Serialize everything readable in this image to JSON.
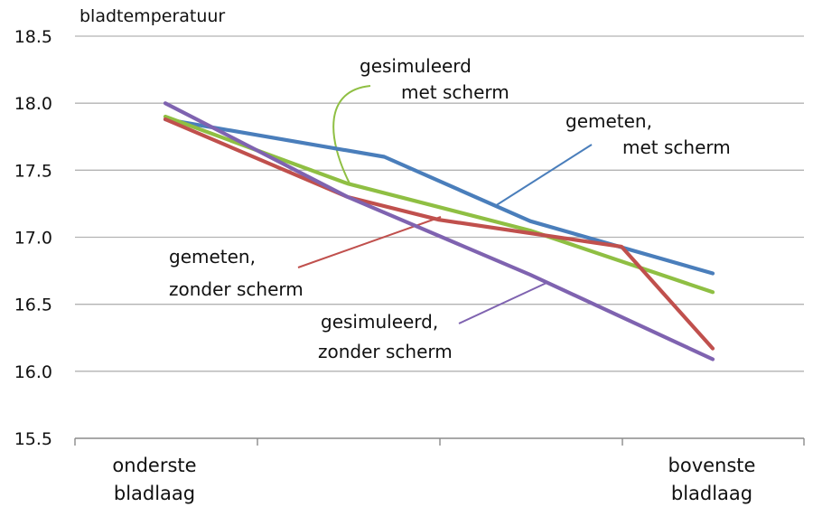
{
  "chart_data": {
    "type": "line",
    "title": "",
    "ylabel": "bladtemperatuur",
    "xlabel": "",
    "ylim": [
      15.5,
      18.5
    ],
    "ytick_step": 0.5,
    "yticks": [
      "15.5",
      "16.0",
      "16.5",
      "17.0",
      "17.5",
      "18.0",
      "18.5"
    ],
    "categories": [
      {
        "line1": "onderste",
        "line2": "bladlaag"
      },
      {
        "line1": "",
        "line2": ""
      },
      {
        "line1": "",
        "line2": ""
      },
      {
        "line1": "bovenste",
        "line2": "bladlaag"
      }
    ],
    "grid": true,
    "legend": "none (inline annotations)",
    "series": [
      {
        "color": "#4a7ebb",
        "label_lines": [
          "gemeten,",
          "met scherm"
        ],
        "x": [
          0,
          1.2,
          2.0,
          3.0
        ],
        "values": [
          17.88,
          17.6,
          17.12,
          16.73
        ]
      },
      {
        "color": "#8fbf43",
        "label_lines": [
          "gesimuleerd",
          "met scherm"
        ],
        "x": [
          0,
          1.0,
          2.0,
          3.0
        ],
        "values": [
          17.9,
          17.4,
          17.05,
          16.59
        ]
      },
      {
        "color": "#c0504d",
        "label_lines": [
          "gemeten,",
          "zonder scherm"
        ],
        "x": [
          0,
          1.0,
          1.5,
          2.5,
          3.0
        ],
        "values": [
          17.88,
          17.3,
          17.13,
          16.93,
          16.17
        ]
      },
      {
        "color": "#7f63b0",
        "label_lines": [
          "gesimuleerd,",
          "zonder scherm"
        ],
        "x": [
          0,
          1.0,
          2.0,
          3.0
        ],
        "values": [
          18.0,
          17.3,
          16.72,
          16.09
        ]
      }
    ]
  }
}
